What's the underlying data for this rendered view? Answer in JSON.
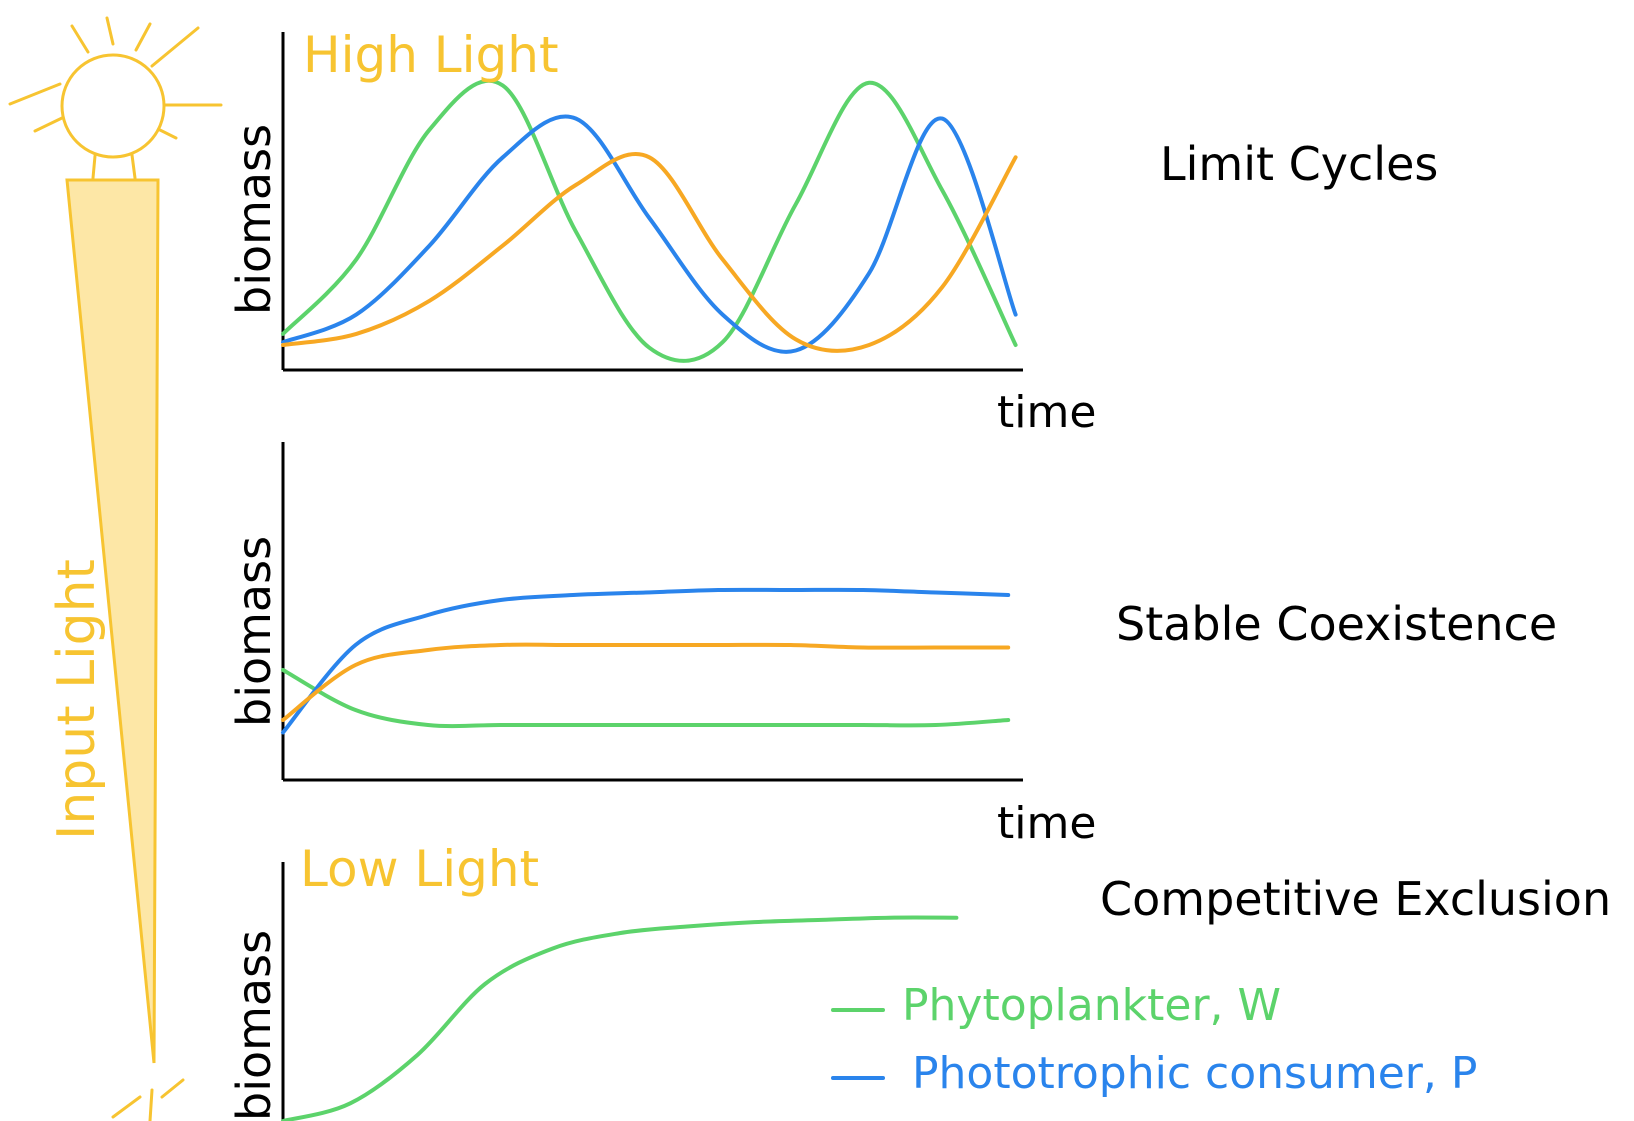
{
  "colors": {
    "light": "#f7c431",
    "light_fill": "#fde7a6",
    "axis": "#000000",
    "phytoplankter": "#5cd36b",
    "phototrophic_consumer": "#2a84ec",
    "third_species": "#f7a823",
    "text": "#000000"
  },
  "icons": [
    "sun-icon",
    "light-wedge-icon",
    "sun-icon-partial"
  ],
  "light_gradient": {
    "label": "Input Light"
  },
  "panels": [
    {
      "light_label": "High Light",
      "ylabel": "biomass",
      "xlabel": "time",
      "regime": "Limit Cycles"
    },
    {
      "light_label": "",
      "ylabel": "biomass",
      "xlabel": "time",
      "regime": "Stable Coexistence"
    },
    {
      "light_label": "Low Light",
      "ylabel": "biomass",
      "xlabel": "",
      "regime": "Competitive Exclusion"
    }
  ],
  "legend": {
    "items": [
      {
        "label": "Phytoplankter, W",
        "color": "#5cd36b"
      },
      {
        "label": "Phototrophic consumer, P",
        "color": "#2a84ec"
      }
    ]
  },
  "chart_data": [
    {
      "type": "line",
      "title": "High Light",
      "xlabel": "time",
      "ylabel": "biomass",
      "annotation": "Limit Cycles",
      "x": [
        0,
        0.1,
        0.2,
        0.3,
        0.4,
        0.5,
        0.6,
        0.7,
        0.8,
        0.9,
        1.0
      ],
      "series": [
        {
          "name": "Phytoplankter, W",
          "color": "#5cd36b",
          "values": [
            0.08,
            0.35,
            0.82,
            0.98,
            0.45,
            0.03,
            0.05,
            0.55,
            0.99,
            0.6,
            0.04
          ]
        },
        {
          "name": "Phototrophic consumer, P",
          "color": "#2a84ec",
          "values": [
            0.05,
            0.15,
            0.4,
            0.72,
            0.86,
            0.5,
            0.15,
            0.02,
            0.3,
            0.86,
            0.15
          ]
        },
        {
          "name": "",
          "color": "#f7a823",
          "values": [
            0.04,
            0.08,
            0.2,
            0.4,
            0.62,
            0.72,
            0.35,
            0.06,
            0.04,
            0.25,
            0.72
          ]
        }
      ]
    },
    {
      "type": "line",
      "title": "",
      "xlabel": "time",
      "ylabel": "biomass",
      "annotation": "Stable Coexistence",
      "x": [
        0,
        0.1,
        0.2,
        0.3,
        0.4,
        0.5,
        0.6,
        0.7,
        0.8,
        0.9,
        1.0
      ],
      "series": [
        {
          "name": "Phytoplankter, W",
          "color": "#5cd36b",
          "values": [
            0.4,
            0.24,
            0.18,
            0.18,
            0.18,
            0.18,
            0.18,
            0.18,
            0.18,
            0.18,
            0.2
          ]
        },
        {
          "name": "Phototrophic consumer, P",
          "color": "#2a84ec",
          "values": [
            0.15,
            0.5,
            0.62,
            0.68,
            0.7,
            0.71,
            0.72,
            0.72,
            0.72,
            0.71,
            0.7
          ]
        },
        {
          "name": "",
          "color": "#f7a823",
          "values": [
            0.2,
            0.42,
            0.48,
            0.5,
            0.5,
            0.5,
            0.5,
            0.5,
            0.49,
            0.49,
            0.49
          ]
        }
      ]
    },
    {
      "type": "line",
      "title": "Low Light",
      "xlabel": "",
      "ylabel": "biomass",
      "annotation": "Competitive Exclusion",
      "x": [
        0,
        0.1,
        0.2,
        0.3,
        0.4,
        0.5,
        0.6,
        0.7,
        0.8,
        0.9,
        1.0
      ],
      "series": [
        {
          "name": "Phytoplankter, W",
          "color": "#5cd36b",
          "values": [
            0.0,
            0.08,
            0.3,
            0.62,
            0.78,
            0.85,
            0.88,
            0.9,
            0.91,
            0.92,
            0.92
          ]
        }
      ]
    }
  ]
}
